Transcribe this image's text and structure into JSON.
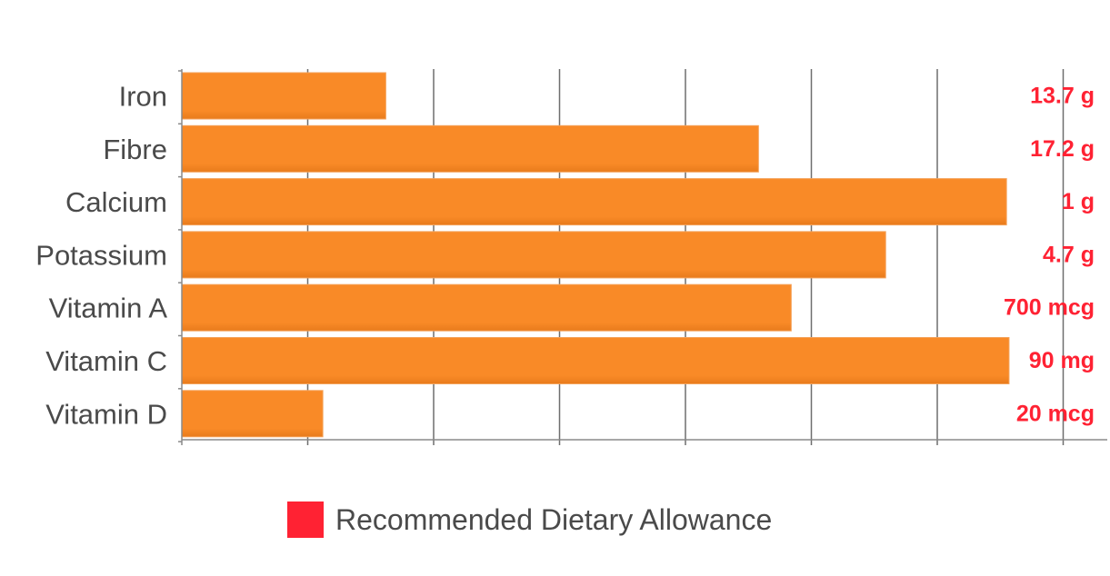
{
  "chart_data": {
    "type": "bar",
    "orientation": "horizontal",
    "categories": [
      "Iron",
      "Fibre",
      "Calcium",
      "Potassium",
      "Vitamin A",
      "Vitamin C",
      "Vitamin D"
    ],
    "values": [
      16.2,
      45.8,
      65.5,
      55.9,
      48.4,
      65.7,
      11.2
    ],
    "xlim": [
      0,
      73
    ],
    "x_gridline_interval": 10,
    "bar_color": "#f98a27",
    "rda_labels": [
      "13.7 g",
      "17.2 g",
      "1 g",
      "4.7 g",
      "700 mcg",
      "90 mg",
      "20 mcg"
    ],
    "rda_color": "#ff2233",
    "grid": true,
    "legend_placement": "bottom",
    "legend": [
      {
        "name": "Recommended Dietary Allowance",
        "color": "#ff2233"
      }
    ]
  }
}
